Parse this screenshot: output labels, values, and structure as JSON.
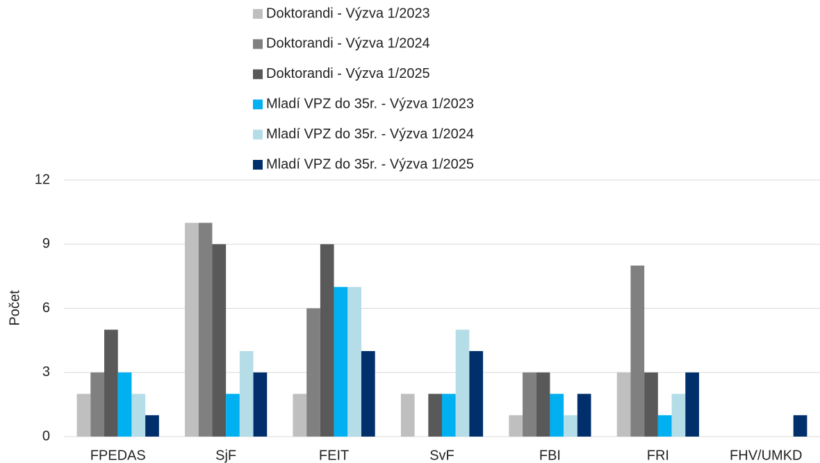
{
  "chart_data": {
    "type": "bar",
    "y_label": "Počet",
    "categories": [
      "FPEDAS",
      "SjF",
      "FEIT",
      "SvF",
      "FBI",
      "FRI",
      "FHV/UMKD"
    ],
    "series": [
      {
        "name": "Doktorandi - Výzva 1/2023",
        "color": "#bfbfbf",
        "values": [
          2,
          10,
          2,
          2,
          1,
          3,
          0
        ]
      },
      {
        "name": "Doktorandi - Výzva 1/2024",
        "color": "#808080",
        "values": [
          3,
          10,
          6,
          0,
          3,
          8,
          0
        ]
      },
      {
        "name": "Doktorandi - Výzva 1/2025",
        "color": "#595959",
        "values": [
          5,
          9,
          9,
          2,
          3,
          3,
          0
        ]
      },
      {
        "name": "Mladí VPZ do 35r. - Výzva 1/2023",
        "color": "#00b0f0",
        "values": [
          3,
          2,
          7,
          2,
          2,
          1,
          0
        ]
      },
      {
        "name": "Mladí VPZ do 35r. - Výzva 1/2024",
        "color": "#b4dde8",
        "values": [
          2,
          4,
          7,
          5,
          1,
          2,
          0
        ]
      },
      {
        "name": "Mladí VPZ do 35r. - Výzva 1/2025",
        "color": "#002f6c",
        "values": [
          1,
          3,
          4,
          4,
          2,
          3,
          1
        ]
      }
    ],
    "ylim": [
      0,
      12
    ],
    "yticks": [
      0,
      3,
      6,
      9,
      12
    ],
    "grid": true,
    "legend": "top"
  }
}
